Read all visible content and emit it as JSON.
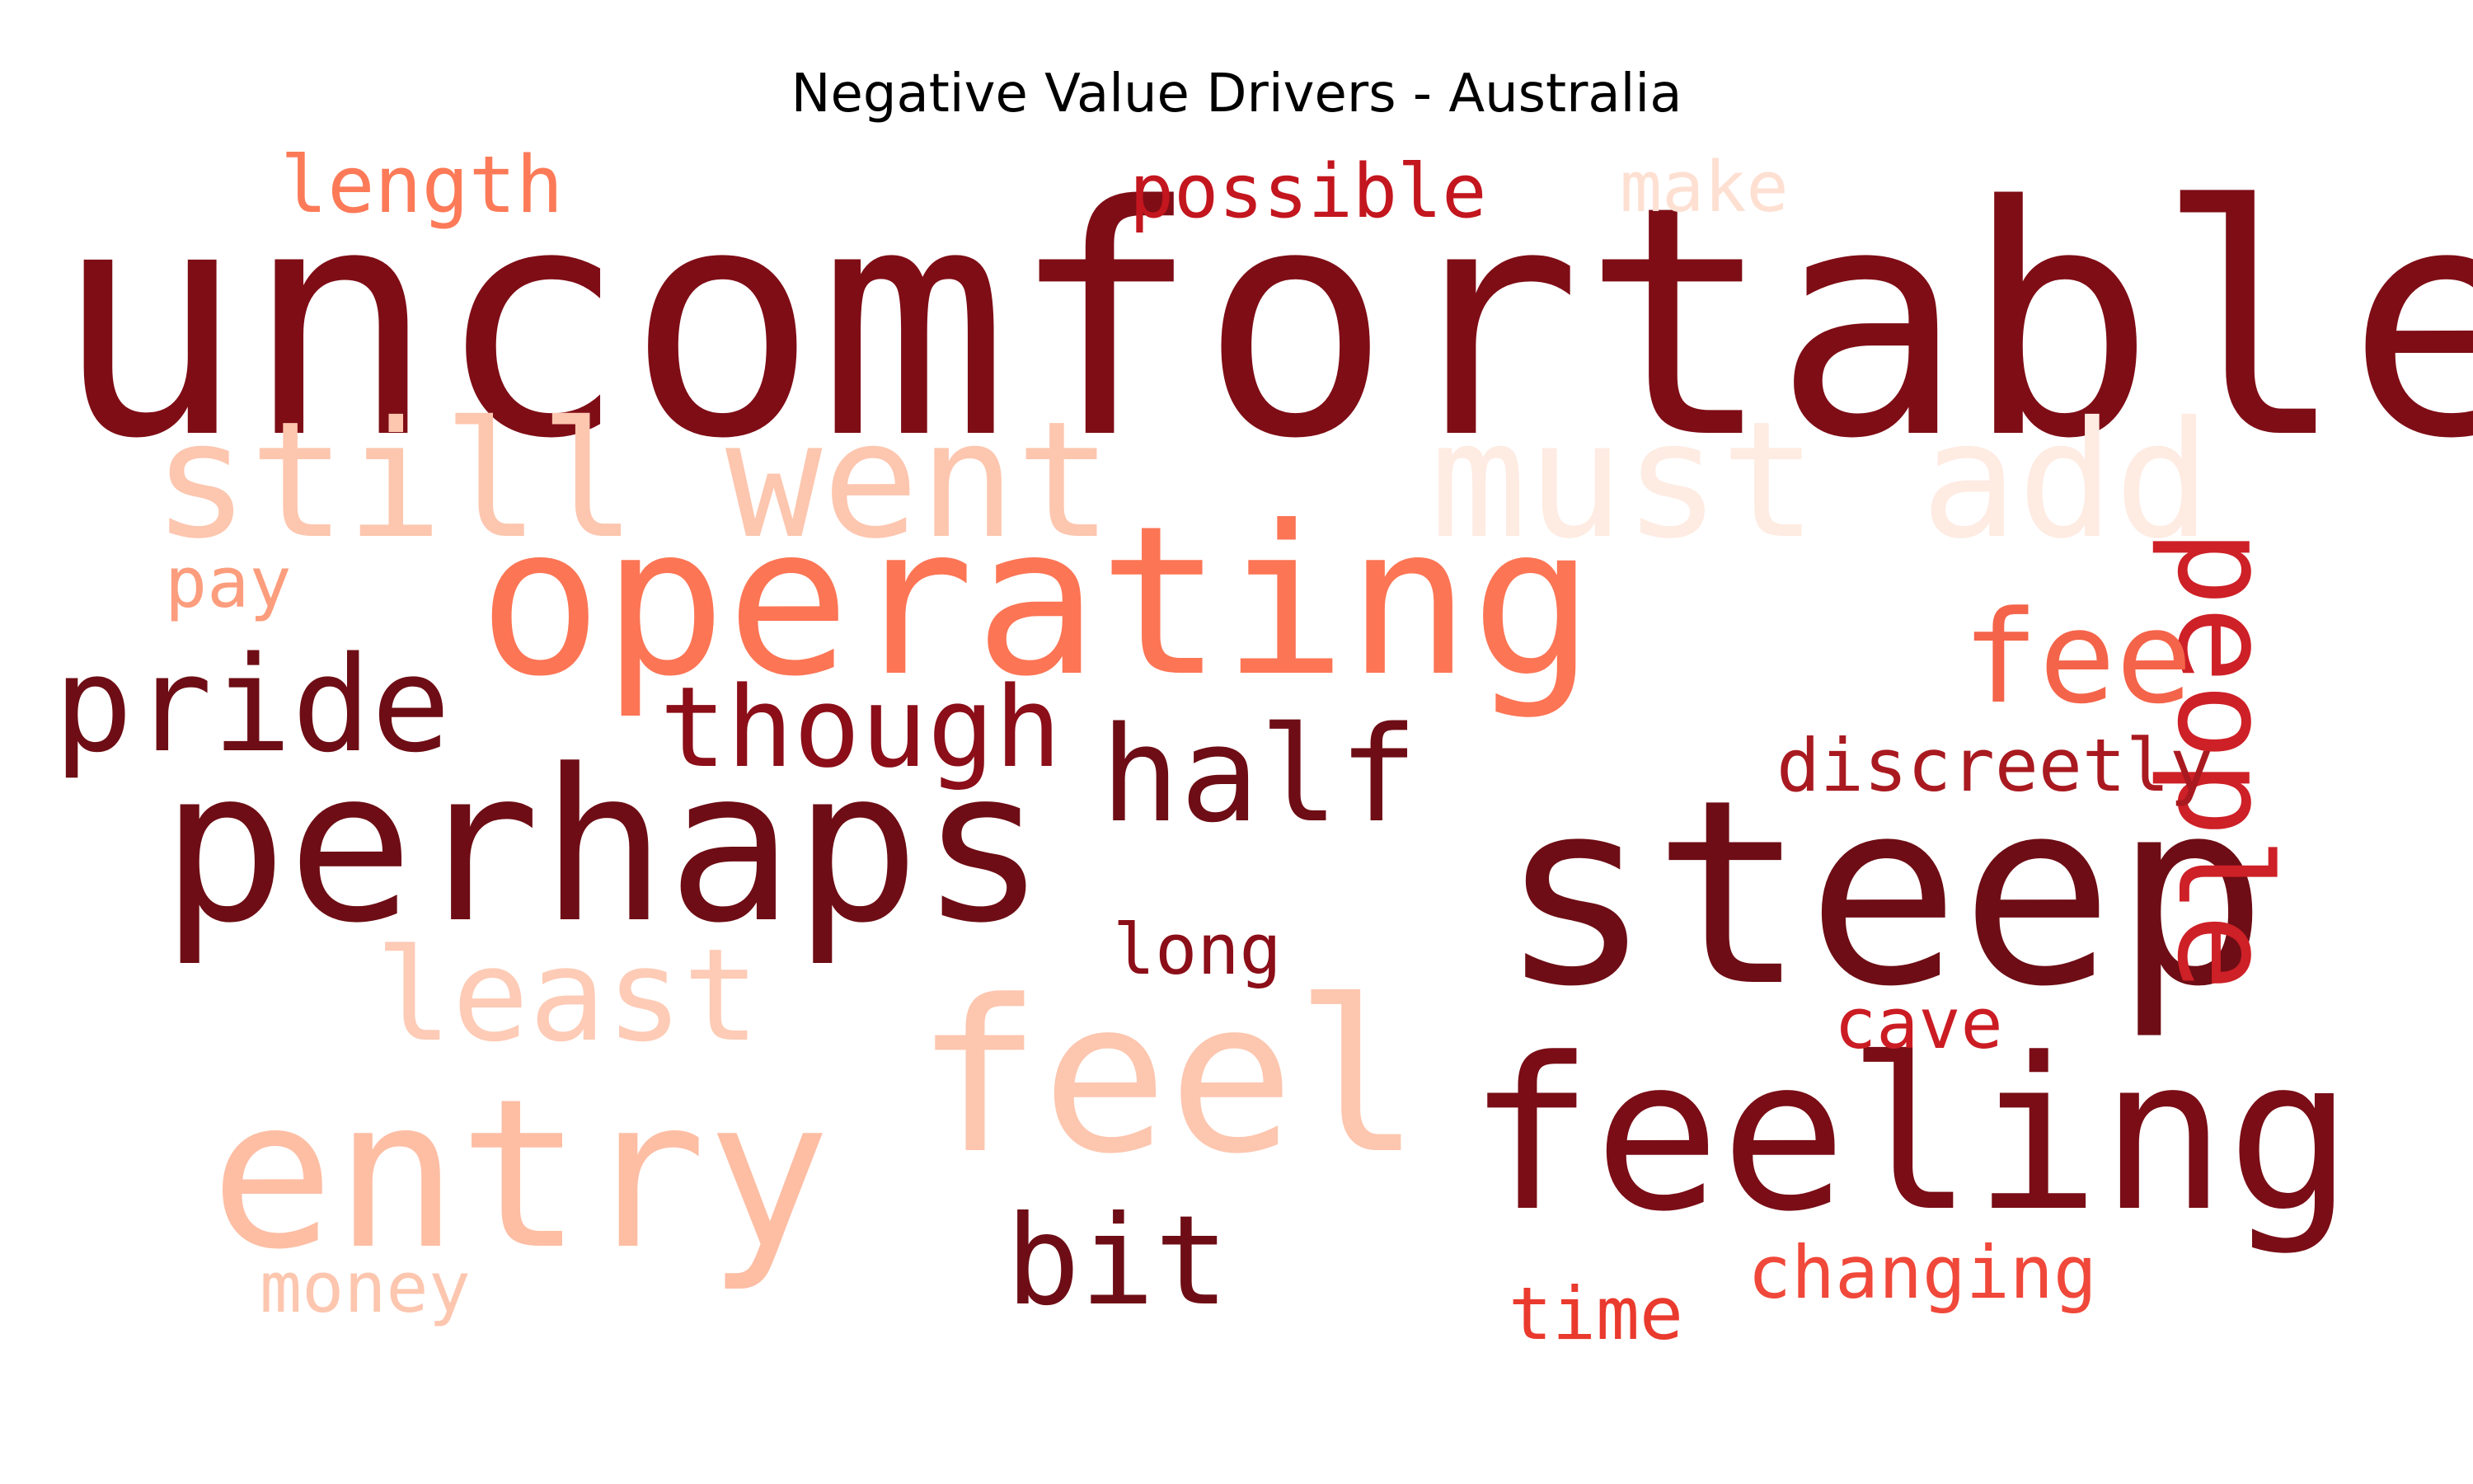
{
  "title": "Negative Value Drivers - Australia",
  "words": [
    {
      "text": "uncomfortable",
      "color": "#7f0d16"
    },
    {
      "text": "steep",
      "color": "#6e0d15"
    },
    {
      "text": "perhaps",
      "color": "#6e0d15"
    },
    {
      "text": "feeling",
      "color": "#7a0d16"
    },
    {
      "text": "operating",
      "color": "#fc7555"
    },
    {
      "text": "entry",
      "color": "#fdbea4"
    },
    {
      "text": "feel",
      "color": "#fdc6af"
    },
    {
      "text": "still",
      "color": "#fdc6af"
    },
    {
      "text": "went",
      "color": "#fdc6af"
    },
    {
      "text": "must",
      "color": "#feebe2"
    },
    {
      "text": "add",
      "color": "#feebe2"
    },
    {
      "text": "people",
      "color": "#ce2027"
    },
    {
      "text": "pride",
      "color": "#6e0d15"
    },
    {
      "text": "though",
      "color": "#8b0e18"
    },
    {
      "text": "half",
      "color": "#6e0d15"
    },
    {
      "text": "fee",
      "color": "#f4644a"
    },
    {
      "text": "least",
      "color": "#fdcbb6"
    },
    {
      "text": "bit",
      "color": "#6e0d15"
    },
    {
      "text": "discreetly",
      "color": "#a91a20"
    },
    {
      "text": "length",
      "color": "#fc7a58"
    },
    {
      "text": "possible",
      "color": "#c3161e"
    },
    {
      "text": "make",
      "color": "#fee0d2"
    },
    {
      "text": "pay",
      "color": "#fc9d7d"
    },
    {
      "text": "long",
      "color": "#8b0e18"
    },
    {
      "text": "cave",
      "color": "#cb1c23"
    },
    {
      "text": "money",
      "color": "#fdc6af"
    },
    {
      "text": "changing",
      "color": "#f0483a"
    },
    {
      "text": "time",
      "color": "#ea3a2e"
    }
  ]
}
